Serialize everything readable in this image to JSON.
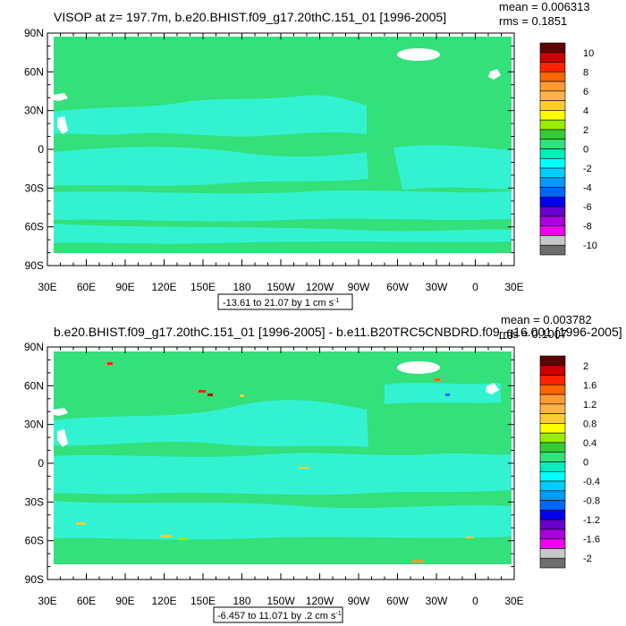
{
  "chart_data": [
    {
      "type": "heatmap",
      "title": "VISOP at z= 197.7m, b.e20.BHIST.f09_g17.20thC.151_01 [1996-2005]",
      "stats": [
        "mean = 0.006313",
        "rms = 0.1851"
      ],
      "x_ticks": [
        "30E",
        "60E",
        "90E",
        "120E",
        "150E",
        "180",
        "150W",
        "120W",
        "90W",
        "60W",
        "30W",
        "0",
        "30E"
      ],
      "y_ticks": [
        "90N",
        "60N",
        "30N",
        "0",
        "30S",
        "60S",
        "90S"
      ],
      "colorbar_labels": [
        "10",
        "8",
        "6",
        "4",
        "2",
        "0",
        "-2",
        "-4",
        "-6",
        "-8",
        "-10"
      ],
      "contour_info_prefix": "-13.61 to 21.07 by 1 cm s",
      "contour_info_exp": "-1",
      "xlim": [
        30,
        390
      ],
      "ylim": [
        -90,
        90
      ],
      "data_lat_range": [
        -78,
        89
      ],
      "field_summary": "Mostly in the 0 to 2 band (green) with broad bands of -2 to 0 (cyan) across the tropics and mid-latitude oceans."
    },
    {
      "type": "heatmap",
      "title": "b.e20.BHIST.f09_g17.20thC.151_01 [1996-2005] - b.e11.B20TRC5CNBDRD.f09_g16.001 [1996-2005]",
      "stats": [
        "mean = 0.003782",
        "rms = 0.1007"
      ],
      "x_ticks": [
        "30E",
        "60E",
        "90E",
        "120E",
        "150E",
        "180",
        "150W",
        "120W",
        "90W",
        "60W",
        "30W",
        "0",
        "30E"
      ],
      "y_ticks": [
        "90N",
        "60N",
        "30N",
        "0",
        "30S",
        "60S",
        "90S"
      ],
      "colorbar_labels": [
        "2",
        "1.6",
        "1.2",
        "0.8",
        "0.4",
        "0",
        "-0.4",
        "-0.8",
        "-1.2",
        "-1.6",
        "-2"
      ],
      "contour_info_prefix": "-6.457 to 11.071 by .2 cm s",
      "contour_info_exp": "-1",
      "xlim": [
        30,
        390
      ],
      "ylim": [
        -90,
        90
      ],
      "data_lat_range": [
        -78,
        89
      ],
      "field_summary": "Mostly in the 0 to 0.4 band (green) with patchy -0.4 to 0 (cyan) regions and sparse small extremes near coasts and the Southern Ocean."
    }
  ],
  "colors": {
    "palette": [
      "#600000",
      "#cc0000",
      "#ff2200",
      "#ff6600",
      "#ff9933",
      "#ffb347",
      "#ffcc33",
      "#ffff00",
      "#99ee00",
      "#33cc33",
      "#33e07a",
      "#00eebb",
      "#00ffff",
      "#00ccff",
      "#0099ff",
      "#0066ff",
      "#0000ee",
      "#6600cc",
      "#aa00dd",
      "#ee00ee",
      "#c8c8c8",
      "#6e6e6e"
    ],
    "background": "#ffffff",
    "green_band": "#33e07a",
    "cyan_band": "#33f2d2"
  }
}
